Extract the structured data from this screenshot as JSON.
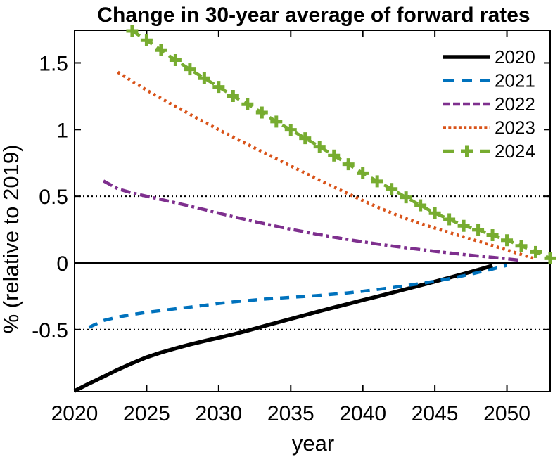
{
  "chart_data": {
    "type": "line",
    "title": "Change in 30-year average of forward rates",
    "xlabel": "year",
    "ylabel": "% (relative to 2019)",
    "xlim": [
      2020,
      2053
    ],
    "ylim": [
      -0.965,
      1.745
    ],
    "x_ticks": [
      2020,
      2025,
      2030,
      2035,
      2040,
      2045,
      2050
    ],
    "y_ticks": [
      -0.5,
      0,
      0.5,
      1,
      1.5
    ],
    "grid": false,
    "legend": {
      "location": "northeast-inside",
      "boxed": false
    },
    "reference_lines": [
      {
        "y": 0.5,
        "style": "dotted"
      },
      {
        "y": -0.5,
        "style": "dotted"
      },
      {
        "y": 0,
        "style": "solid"
      }
    ],
    "series": [
      {
        "name": "2020",
        "color": "#000000",
        "style": "solid",
        "marker": "none",
        "x_start": 2020,
        "values": [
          -0.96,
          -0.905,
          -0.853,
          -0.8,
          -0.752,
          -0.707,
          -0.672,
          -0.641,
          -0.612,
          -0.586,
          -0.561,
          -0.536,
          -0.508,
          -0.478,
          -0.449,
          -0.42,
          -0.391,
          -0.362,
          -0.334,
          -0.307,
          -0.279,
          -0.252,
          -0.224,
          -0.196,
          -0.168,
          -0.14,
          -0.111,
          -0.082,
          -0.052,
          -0.02
        ]
      },
      {
        "name": "2021",
        "color": "#0072BD",
        "style": "dashed",
        "marker": "none",
        "x_start": 2021,
        "values": [
          -0.483,
          -0.432,
          -0.406,
          -0.387,
          -0.371,
          -0.357,
          -0.344,
          -0.331,
          -0.318,
          -0.304,
          -0.292,
          -0.282,
          -0.273,
          -0.265,
          -0.258,
          -0.251,
          -0.243,
          -0.234,
          -0.224,
          -0.212,
          -0.199,
          -0.185,
          -0.17,
          -0.154,
          -0.137,
          -0.118,
          -0.096,
          -0.072,
          -0.046,
          -0.018
        ]
      },
      {
        "name": "2022",
        "color": "#7E2F8E",
        "style": "dash-dot",
        "marker": "none",
        "x_start": 2022,
        "values": [
          0.615,
          0.556,
          0.525,
          0.5,
          0.476,
          0.451,
          0.426,
          0.4,
          0.373,
          0.347,
          0.322,
          0.298,
          0.275,
          0.253,
          0.232,
          0.212,
          0.193,
          0.175,
          0.158,
          0.142,
          0.127,
          0.113,
          0.1,
          0.087,
          0.075,
          0.063,
          0.052,
          0.042,
          0.031,
          0.019
        ]
      },
      {
        "name": "2023",
        "color": "#D95319",
        "style": "dotted",
        "marker": "none",
        "x_start": 2023,
        "values": [
          1.43,
          1.362,
          1.296,
          1.234,
          1.174,
          1.115,
          1.057,
          1.0,
          0.944,
          0.889,
          0.835,
          0.781,
          0.727,
          0.674,
          0.621,
          0.569,
          0.518,
          0.468,
          0.42,
          0.375,
          0.332,
          0.295,
          0.261,
          0.228,
          0.195,
          0.163,
          0.13,
          0.097,
          0.063,
          0.03
        ]
      },
      {
        "name": "2024",
        "color": "#77AC30",
        "style": "dashed",
        "marker": "plus",
        "x_start": 2024,
        "values": [
          1.74,
          1.67,
          1.596,
          1.521,
          1.452,
          1.385,
          1.32,
          1.252,
          1.19,
          1.128,
          1.06,
          0.998,
          0.935,
          0.872,
          0.805,
          0.74,
          0.673,
          0.612,
          0.555,
          0.492,
          0.432,
          0.373,
          0.327,
          0.278,
          0.248,
          0.208,
          0.17,
          0.128,
          0.082,
          0.035
        ]
      }
    ]
  }
}
